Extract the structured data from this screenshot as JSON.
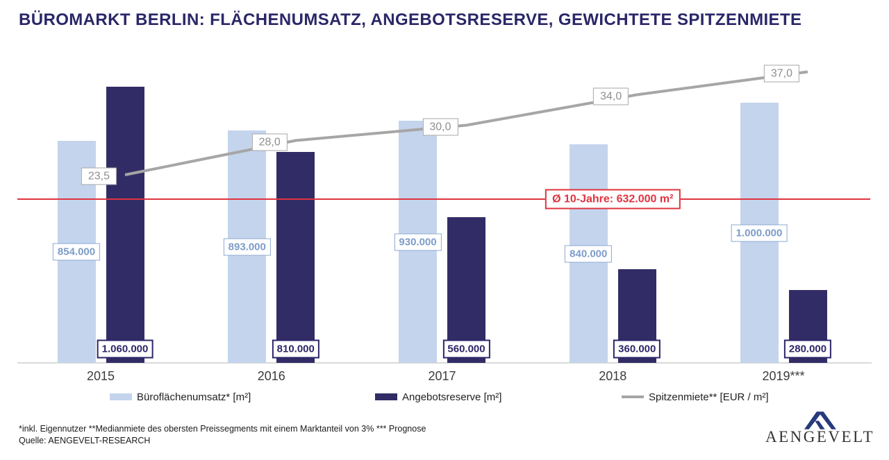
{
  "title": "BÜROMARKT BERLIN: FLÄCHENUMSATZ, ANGEBOTSRESERVE, GEWICHTETE SPITZENMIETE",
  "chart_data": {
    "type": "bar",
    "subtype": "grouped bars with line overlay",
    "categories": [
      "2015",
      "2016",
      "2017",
      "2018",
      "2019***"
    ],
    "series": [
      {
        "name": "Büroflächenumsatz* [m²]",
        "kind": "bar",
        "color": "#c4d4ed",
        "label_color": "#7d9cc9",
        "label_border": "#8ca8d2",
        "values": [
          854000,
          893000,
          930000,
          840000,
          1000000
        ],
        "value_labels": [
          "854.000",
          "893.000",
          "930.000",
          "840.000",
          "1.000.000"
        ]
      },
      {
        "name": "Angebotsreserve [m²]",
        "kind": "bar",
        "color": "#322c66",
        "label_color": "#2b2668",
        "label_border": "#2b2668",
        "values": [
          1060000,
          810000,
          560000,
          360000,
          280000
        ],
        "value_labels": [
          "1.060.000",
          "810.000",
          "560.000",
          "360.000",
          "280.000"
        ]
      },
      {
        "name": "Spitzenmiete** [EUR / m²]",
        "kind": "line",
        "color": "#a6a6a6",
        "label_color": "#8f8f8f",
        "label_border": "#a6a6a6",
        "values": [
          23.5,
          28.0,
          30.0,
          34.0,
          37.0
        ],
        "value_labels": [
          "23,5",
          "28,0",
          "30,0",
          "34,0",
          "37,0"
        ]
      }
    ],
    "reference_line": {
      "value": 632000,
      "label": "Ø 10-Jahre: 632.000 m²",
      "color": "#e0333f"
    },
    "ylim": [
      0,
      1150000
    ],
    "y2lim": [
      20,
      40
    ],
    "grid": false,
    "y_axis_labels_visible": false,
    "legend_position": "bottom"
  },
  "footnotes": {
    "line1": "*inkl. Eigennutzer **Medianmiete des obersten Preissegments mit einem Marktanteil von 3% *** Prognose",
    "line2": "Quelle: AENGEVELT-RESEARCH"
  },
  "logo": {
    "text": "AENGEVELT",
    "mark_color": "#263a7d",
    "text_color": "#333333"
  }
}
